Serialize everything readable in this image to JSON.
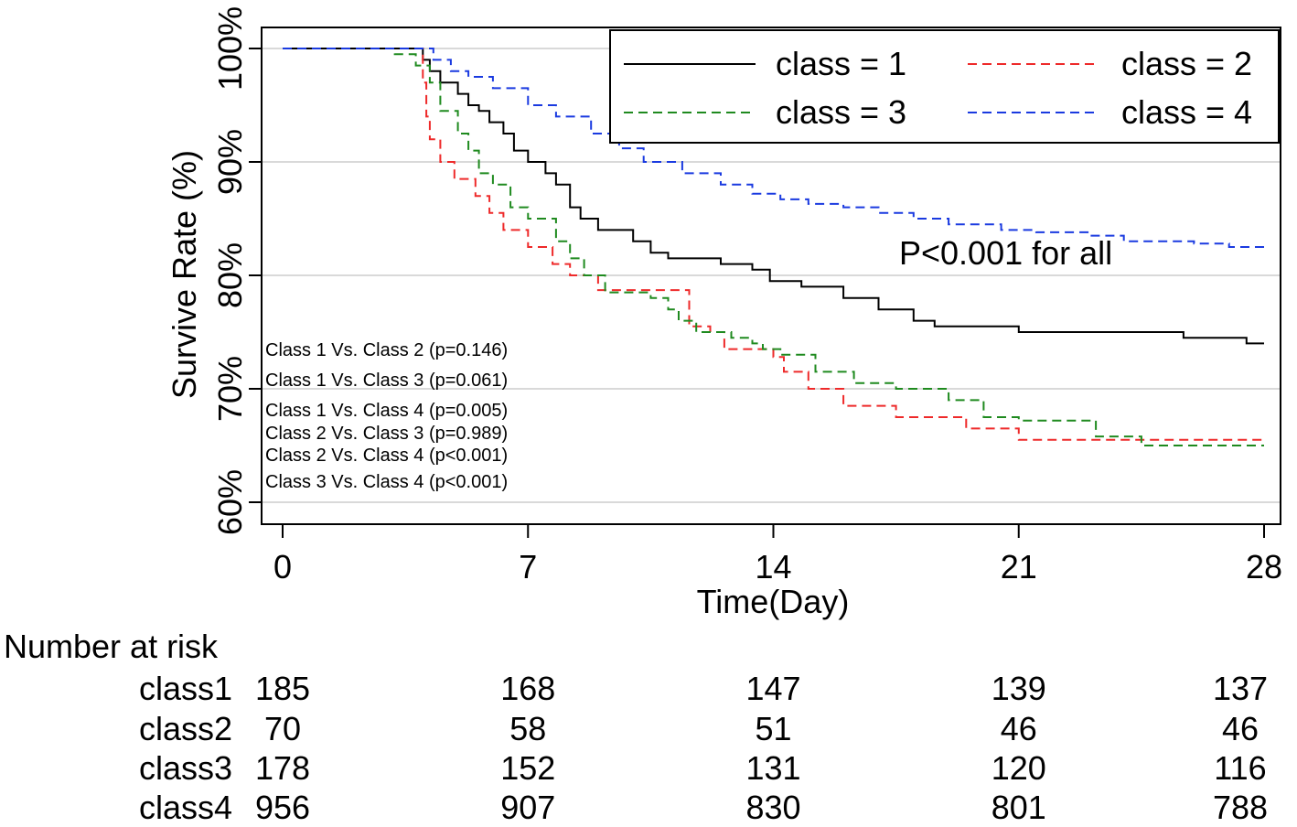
{
  "chart_data": {
    "type": "line",
    "subtype": "kaplan-meier",
    "title": "",
    "xlabel": "Time(Day)",
    "ylabel": "Survive Rate (%)",
    "xlim": [
      0,
      28
    ],
    "ylim": [
      58,
      102
    ],
    "x_ticks": [
      0,
      7,
      14,
      21,
      28
    ],
    "x_tick_labels": [
      "0",
      "7",
      "14",
      "21",
      "28"
    ],
    "y_ticks": [
      60,
      70,
      80,
      90,
      100
    ],
    "y_tick_labels": [
      "60%",
      "70%",
      "80%",
      "90%",
      "100%"
    ],
    "grid": "horizontal",
    "legend_position": "top-right",
    "annotation": "P<0.001 for all",
    "pairwise_tests": [
      "Class 1 Vs. Class 2 (p=0.146)",
      "Class 1 Vs. Class 3 (p=0.061)",
      "Class 1 Vs. Class 4 (p=0.005)",
      "Class 2 Vs. Class 3 (p=0.989)",
      "Class 2 Vs. Class 4 (p<0.001)",
      "Class 3 Vs. Class 4 (p<0.001)"
    ],
    "series": [
      {
        "name": "class = 1",
        "color": "#000000",
        "dash": "solid",
        "points": [
          [
            0,
            100
          ],
          [
            3.8,
            100
          ],
          [
            4,
            99
          ],
          [
            4.2,
            98
          ],
          [
            4.5,
            97
          ],
          [
            5,
            96
          ],
          [
            5.3,
            95
          ],
          [
            5.6,
            94.5
          ],
          [
            5.9,
            93.5
          ],
          [
            6.3,
            92.5
          ],
          [
            6.6,
            91
          ],
          [
            7,
            90
          ],
          [
            7.5,
            89
          ],
          [
            7.8,
            88
          ],
          [
            8.2,
            86
          ],
          [
            8.5,
            85
          ],
          [
            9,
            84
          ],
          [
            10,
            83
          ],
          [
            10.5,
            82
          ],
          [
            11,
            81.5
          ],
          [
            12.5,
            81
          ],
          [
            13.4,
            80.5
          ],
          [
            13.9,
            79.5
          ],
          [
            14.8,
            79
          ],
          [
            16,
            78
          ],
          [
            17,
            77
          ],
          [
            18,
            76
          ],
          [
            18.6,
            75.5
          ],
          [
            21,
            75
          ],
          [
            23.5,
            75
          ],
          [
            25.7,
            74.5
          ],
          [
            27.5,
            74
          ],
          [
            28,
            74
          ]
        ]
      },
      {
        "name": "class = 2",
        "color": "#ee2a2a",
        "dash": "dashed",
        "points": [
          [
            0,
            100
          ],
          [
            3.9,
            100
          ],
          [
            4.0,
            97
          ],
          [
            4.1,
            94
          ],
          [
            4.2,
            92
          ],
          [
            4.5,
            90
          ],
          [
            4.9,
            88.5
          ],
          [
            5.5,
            87
          ],
          [
            5.9,
            85.5
          ],
          [
            6.3,
            84
          ],
          [
            7,
            82.5
          ],
          [
            7.7,
            81
          ],
          [
            8.2,
            80
          ],
          [
            9,
            78.7
          ],
          [
            11.3,
            78.7
          ],
          [
            11.6,
            75.5
          ],
          [
            12.2,
            75
          ],
          [
            12.6,
            73.5
          ],
          [
            14,
            72.8
          ],
          [
            14.3,
            71.5
          ],
          [
            15,
            70
          ],
          [
            16,
            68.5
          ],
          [
            17.5,
            67.5
          ],
          [
            19.5,
            66.5
          ],
          [
            21,
            65.5
          ],
          [
            28,
            65.5
          ]
        ]
      },
      {
        "name": "class = 3",
        "color": "#1f8a1f",
        "dash": "dashed",
        "points": [
          [
            0,
            100
          ],
          [
            2.8,
            100
          ],
          [
            3.2,
            99.5
          ],
          [
            3.8,
            98.5
          ],
          [
            4.2,
            97
          ],
          [
            4.5,
            94.5
          ],
          [
            5,
            92.5
          ],
          [
            5.3,
            91
          ],
          [
            5.6,
            89
          ],
          [
            6,
            88
          ],
          [
            6.5,
            86
          ],
          [
            7,
            85
          ],
          [
            7.8,
            83
          ],
          [
            8.2,
            81.5
          ],
          [
            8.6,
            80
          ],
          [
            9.2,
            78.5
          ],
          [
            10.5,
            78
          ],
          [
            11,
            77
          ],
          [
            11.3,
            76
          ],
          [
            11.8,
            75
          ],
          [
            12.8,
            74.5
          ],
          [
            13.4,
            74
          ],
          [
            13.7,
            73.5
          ],
          [
            14.2,
            73
          ],
          [
            15.2,
            71.5
          ],
          [
            16.3,
            70.5
          ],
          [
            17.5,
            70
          ],
          [
            19,
            69
          ],
          [
            20,
            67.5
          ],
          [
            21,
            67.2
          ],
          [
            22.8,
            67.2
          ],
          [
            23.2,
            65.8
          ],
          [
            24.5,
            65
          ],
          [
            28,
            65
          ]
        ]
      },
      {
        "name": "class = 4",
        "color": "#1a3ae0",
        "dash": "dashed",
        "points": [
          [
            0,
            100
          ],
          [
            3.9,
            100
          ],
          [
            4.3,
            99
          ],
          [
            4.8,
            98
          ],
          [
            5.3,
            97.5
          ],
          [
            6,
            96.5
          ],
          [
            7,
            95
          ],
          [
            7.8,
            94
          ],
          [
            8.8,
            92.5
          ],
          [
            9.6,
            91.2
          ],
          [
            10.3,
            90
          ],
          [
            11.4,
            89
          ],
          [
            12.5,
            88
          ],
          [
            13.4,
            87.2
          ],
          [
            14.2,
            86.7
          ],
          [
            15,
            86.3
          ],
          [
            16,
            86
          ],
          [
            17,
            85.5
          ],
          [
            18,
            85
          ],
          [
            19,
            84.5
          ],
          [
            20.5,
            84
          ],
          [
            21.5,
            83.8
          ],
          [
            23,
            83.5
          ],
          [
            24,
            83
          ],
          [
            26,
            82.8
          ],
          [
            27,
            82.5
          ],
          [
            28,
            82.5
          ]
        ]
      }
    ],
    "risk_table": {
      "title": "Number at risk",
      "time_points": [
        0,
        7,
        14,
        21,
        28
      ],
      "rows": [
        {
          "label": "class1",
          "values": [
            "185",
            "168",
            "147",
            "139",
            "137"
          ]
        },
        {
          "label": "class2",
          "values": [
            "70",
            "58",
            "51",
            "46",
            "46"
          ]
        },
        {
          "label": "class3",
          "values": [
            "178",
            "152",
            "131",
            "120",
            "116"
          ]
        },
        {
          "label": "class4",
          "values": [
            "956",
            "907",
            "830",
            "801",
            "788"
          ]
        }
      ]
    }
  }
}
